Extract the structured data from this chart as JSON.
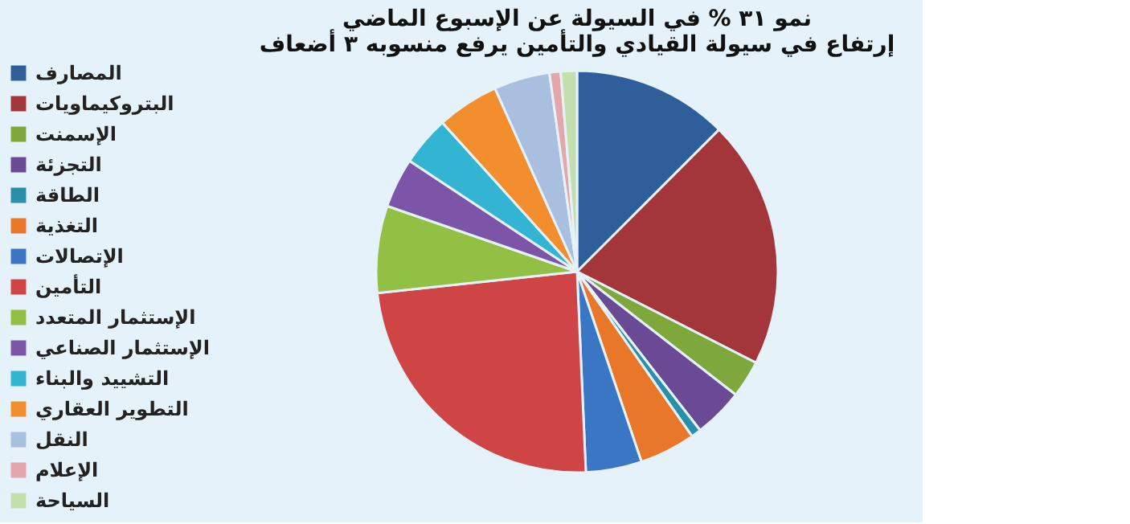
{
  "chart_data": {
    "type": "pie",
    "title": [
      "نمو ٣١ % في السيولة عن الإسبوع الماضي",
      "إرتفاع في سيولة القيادي والتأمين يرفع منسوبه ٣ أضعاف"
    ],
    "categories": [
      "المصارف",
      "البتروكيماويات",
      "الإسمنت",
      "التجزئة",
      "الطاقة",
      "التغذية",
      "الإتصالات",
      "التأمين",
      "الإستثمار المتعدد",
      "الإستثمار الصناعي",
      "التشييد والبناء",
      "التطوير العقاري",
      "النقل",
      "الإعلام",
      "السياحة"
    ],
    "values": [
      12.5,
      20,
      3,
      4,
      0.8,
      4.5,
      4.5,
      24,
      7,
      4,
      4,
      5,
      4.5,
      0.9,
      1.3
    ],
    "colors": [
      "#2f5f9a",
      "#a3363a",
      "#7ea83c",
      "#6a4a94",
      "#2a8fa8",
      "#e8772a",
      "#3b76c4",
      "#cf4444",
      "#91c045",
      "#7c55a8",
      "#32b4d2",
      "#f28e2e",
      "#a9bfe0",
      "#e3a6ab",
      "#c3dfae"
    ],
    "legend": "left"
  }
}
